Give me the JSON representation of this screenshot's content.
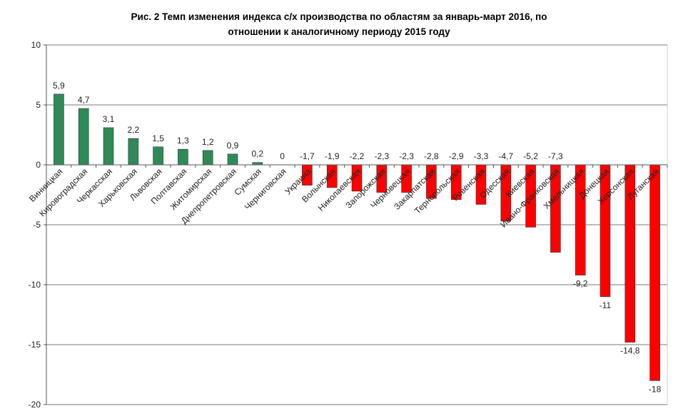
{
  "chart_data": {
    "type": "bar",
    "title_line1": "Рис. 2 Темп изменения индекса с/х производства по областям за январь-март 2016, по",
    "title_line2": "отношении к аналогичному периоду 2015 году",
    "xlabel": "",
    "ylabel": "",
    "ylim": [
      -20,
      10
    ],
    "yticks": [
      10,
      5,
      0,
      -5,
      -10,
      -15,
      -20
    ],
    "ytick_labels": [
      "10",
      "5",
      "0",
      "-5",
      "-10",
      "-15",
      "-20"
    ],
    "grid": true,
    "categories": [
      "Винницкая",
      "Кировоградская",
      "Черкасская",
      "Харьковская",
      "Львовская",
      "Полтавская",
      "Житомирская",
      "Днепропетровская",
      "Сумская",
      "Черниговская",
      "Украина",
      "Волынская",
      "Николаевская",
      "Запорожская",
      "Черновецкая",
      "Закарпатская",
      "Тернопольская",
      "Ровенская",
      "Одесская",
      "Киевская",
      "Ивано-Франковская",
      "Хмельницкая",
      "Донецкая",
      "Херсонская",
      "Луганская"
    ],
    "values": [
      5.9,
      4.7,
      3.1,
      2.2,
      1.5,
      1.3,
      1.2,
      0.9,
      0.2,
      0,
      -1.7,
      -1.9,
      -2.2,
      -2.3,
      -2.3,
      -2.8,
      -2.9,
      -3.3,
      -4.7,
      -5.2,
      -7.3,
      -9.2,
      -11,
      -14.8,
      -18
    ],
    "value_labels": [
      "5,9",
      "4,7",
      "3,1",
      "2,2",
      "1,5",
      "1,3",
      "1,2",
      "0,9",
      "0,2",
      "0",
      "-1,7",
      "-1,9",
      "-2,2",
      "-2,3",
      "-2,3",
      "-2,8",
      "-2,9",
      "-3,3",
      "-4,7",
      "-5,2",
      "-7,3",
      "-9,2",
      "-11",
      "-14,8",
      "-18"
    ],
    "colors": {
      "positive": "#2e8b57",
      "negative": "#ff0000"
    }
  }
}
